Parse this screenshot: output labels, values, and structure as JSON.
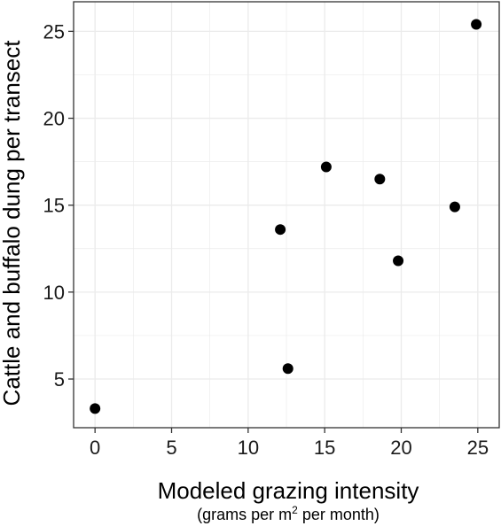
{
  "chart_data": {
    "type": "scatter",
    "xlabel": "Modeled grazing intensity",
    "xlabel_sub": {
      "before": "(grams per m",
      "sup": "2",
      "after": " per month)"
    },
    "ylabel": "Cattle and buffalo dung per transect",
    "xlim": [
      -1.4,
      26.4
    ],
    "ylim": [
      2.2,
      26.7
    ],
    "x_ticks": [
      "0",
      "5",
      "10",
      "15",
      "20",
      "25"
    ],
    "y_ticks": [
      "5",
      "10",
      "15",
      "20",
      "25"
    ],
    "grid": true,
    "points": [
      {
        "x": 0.0,
        "y": 3.3
      },
      {
        "x": 12.1,
        "y": 13.6
      },
      {
        "x": 12.6,
        "y": 5.6
      },
      {
        "x": 15.1,
        "y": 17.2
      },
      {
        "x": 18.6,
        "y": 16.5
      },
      {
        "x": 19.8,
        "y": 11.8
      },
      {
        "x": 23.5,
        "y": 14.9
      },
      {
        "x": 24.9,
        "y": 25.4
      }
    ],
    "point_color": "#000000",
    "panel_border_color": "#333333",
    "grid_color": "#ebebeb"
  }
}
